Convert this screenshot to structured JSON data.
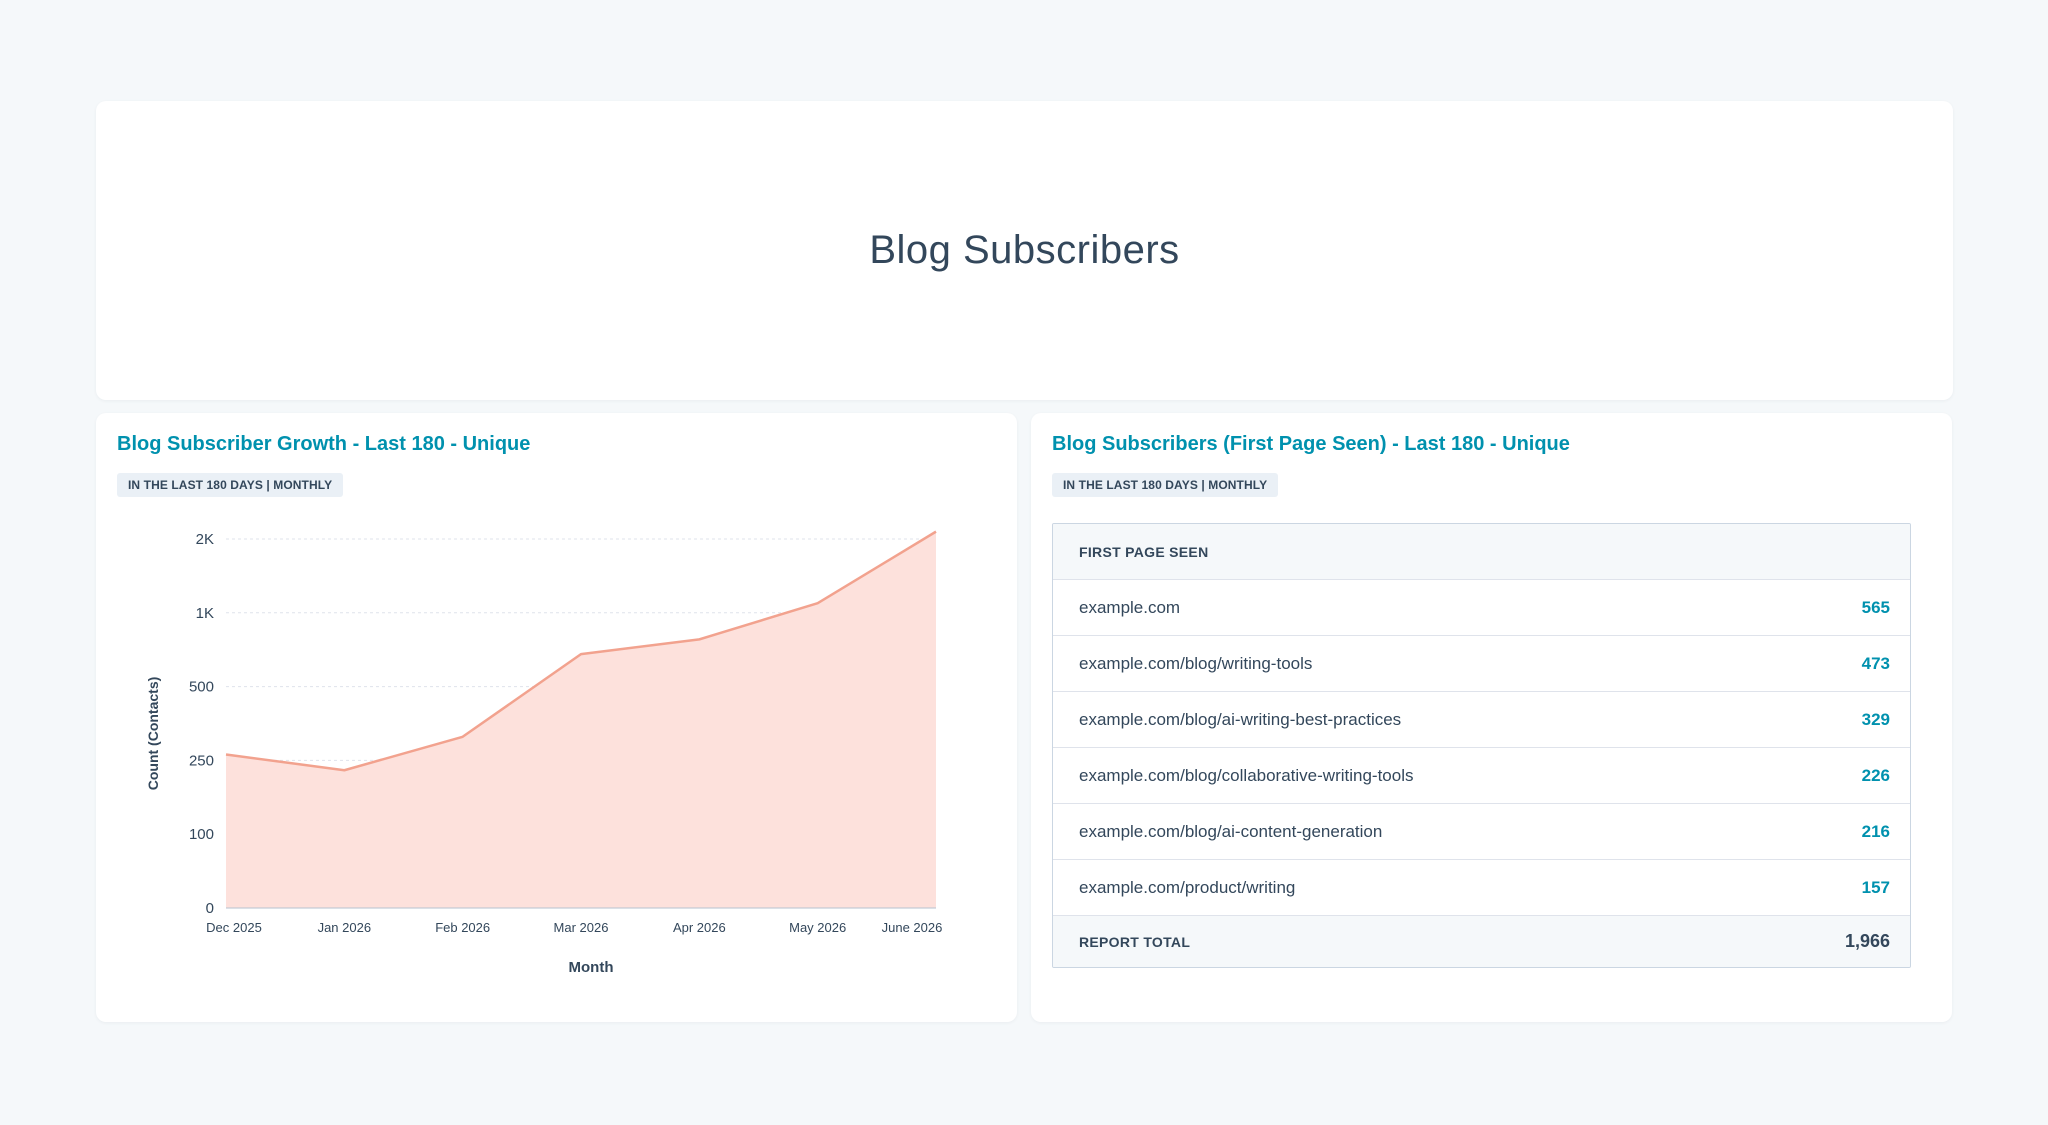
{
  "page": {
    "title": "Blog Subscribers"
  },
  "growth_card": {
    "title": "Blog Subscriber Growth - Last 180 - Unique",
    "badge": "IN THE LAST 180 DAYS | MONTHLY"
  },
  "first_page_card": {
    "title": "Blog Subscribers (First Page Seen) - Last 180 - Unique",
    "badge": "IN THE LAST 180 DAYS | MONTHLY",
    "table": {
      "header": "FIRST PAGE SEEN",
      "rows": [
        {
          "page": "example.com",
          "count": "565"
        },
        {
          "page": "example.com/blog/writing-tools",
          "count": "473"
        },
        {
          "page": "example.com/blog/ai-writing-best-practices",
          "count": "329"
        },
        {
          "page": "example.com/blog/collaborative-writing-tools",
          "count": "226"
        },
        {
          "page": "example.com/blog/ai-content-generation",
          "count": "216"
        },
        {
          "page": "example.com/product/writing",
          "count": "157"
        }
      ],
      "total_label": "REPORT TOTAL",
      "total_value": "1,966"
    }
  },
  "colors": {
    "accent": "#0091ae",
    "text": "#33475b",
    "area_fill": "#fde1dc",
    "area_line": "#f2a28e"
  },
  "chart_data": {
    "type": "area",
    "x": [
      "Dec 2025",
      "Jan 2026",
      "Feb 2026",
      "Mar 2026",
      "Apr 2026",
      "May 2026",
      "June 2026"
    ],
    "series": [
      {
        "values": [
          270,
          230,
          330,
          720,
          820,
          1130,
          2100
        ]
      }
    ],
    "xlabel": "Month",
    "ylabel": "Count (Contacts)",
    "y_scale": "log",
    "y_ticks": [
      0,
      100,
      250,
      500,
      1000,
      2000
    ],
    "y_tick_labels": [
      "0",
      "100",
      "250",
      "500",
      "1K",
      "2K"
    ],
    "grid": true
  }
}
